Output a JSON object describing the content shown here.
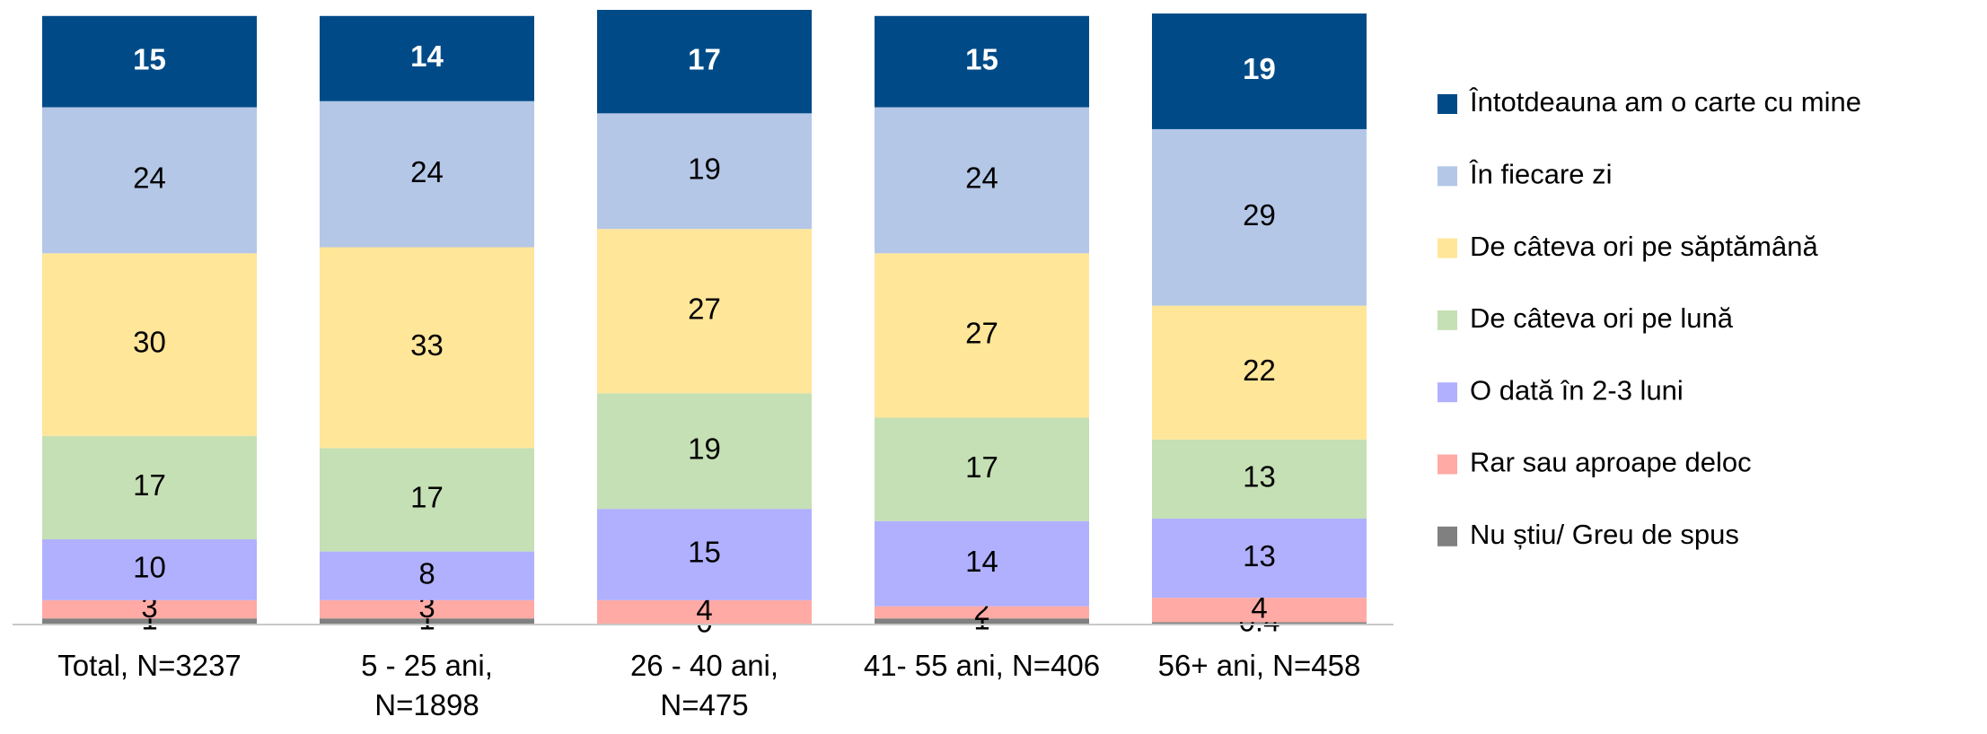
{
  "chart_data": {
    "type": "stacked_bar",
    "categories": [
      "Total, N=3237",
      "5 - 25 ani, N=1898",
      "26 - 40 ani, N=475",
      "41- 55 ani, N=406",
      "56+ ani, N=458"
    ],
    "series": [
      {
        "name": "Întotdeauna am o carte cu mine",
        "color": "#004b87",
        "values": [
          15,
          14,
          17,
          15,
          19
        ]
      },
      {
        "name": "În fiecare zi",
        "color": "#b4c7e7",
        "values": [
          24,
          24,
          19,
          24,
          29
        ]
      },
      {
        "name": "De câteva ori pe săptămână",
        "color": "#ffe699",
        "values": [
          30,
          33,
          27,
          27,
          22
        ]
      },
      {
        "name": "De câteva ori pe lună",
        "color": "#c5e0b4",
        "values": [
          17,
          17,
          19,
          17,
          13
        ]
      },
      {
        "name": "O dată în 2-3 luni",
        "color": "#b0b0ff",
        "values": [
          10,
          8,
          15,
          14,
          13
        ]
      },
      {
        "name": "Rar sau aproape deloc",
        "color": "#ffaaa5",
        "values": [
          3,
          3,
          4,
          2,
          4
        ]
      },
      {
        "name": "Nu știu/ Greu de spus",
        "color": "#808080",
        "values": [
          1,
          1,
          0,
          1,
          0.4
        ]
      }
    ],
    "legend": "right"
  }
}
